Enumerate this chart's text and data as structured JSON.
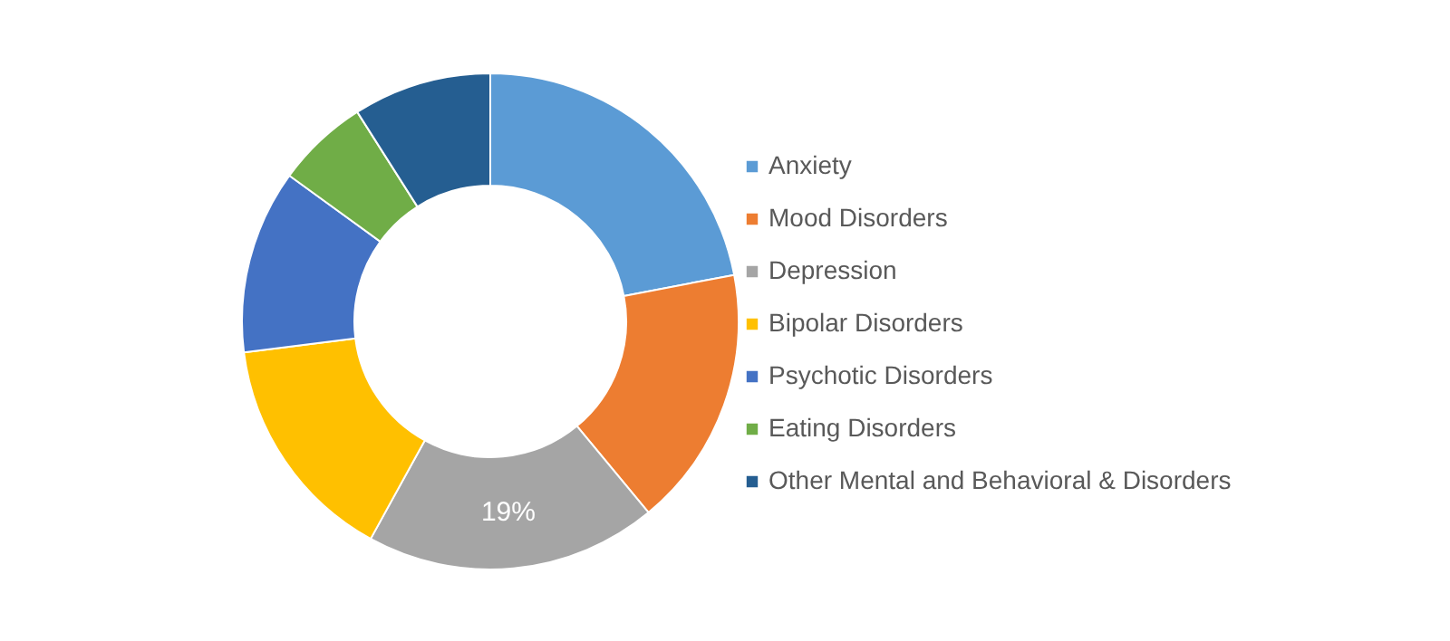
{
  "chart_data": {
    "type": "donut",
    "categories": [
      "Anxiety",
      "Mood Disorders",
      "Depression",
      "Bipolar Disorders",
      "Psychotic Disorders",
      "Eating Disorders",
      "Other Mental and Behavioral & Disorders"
    ],
    "values": [
      22,
      17,
      19,
      15,
      12,
      6,
      9
    ],
    "colors": [
      "#5b9bd5",
      "#ed7d31",
      "#a5a5a5",
      "#ffc000",
      "#4472c4",
      "#70ad47",
      "#255e91"
    ],
    "value_labels": [
      null,
      null,
      "19%",
      null,
      null,
      null,
      null
    ],
    "legend": "right"
  }
}
